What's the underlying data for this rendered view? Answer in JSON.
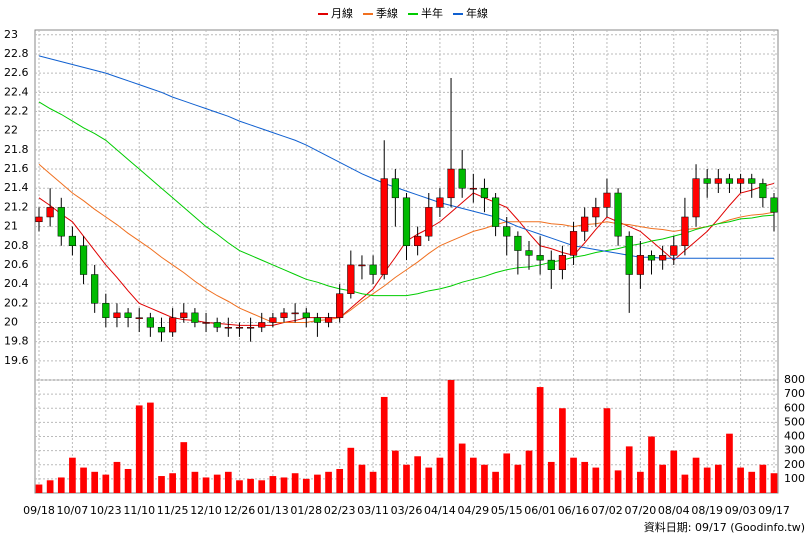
{
  "chart_data": {
    "type": "candlestick",
    "categories": [
      "09/18",
      null,
      null,
      "10/07",
      null,
      null,
      "10/23",
      null,
      null,
      "11/10",
      null,
      null,
      "11/25",
      null,
      null,
      "12/10",
      null,
      null,
      "12/26",
      null,
      null,
      "01/13",
      null,
      null,
      "01/28",
      null,
      null,
      "02/23",
      null,
      null,
      "03/11",
      null,
      null,
      "03/26",
      null,
      null,
      "04/14",
      null,
      null,
      "04/29",
      null,
      null,
      "05/15",
      null,
      null,
      "06/01",
      null,
      null,
      "06/16",
      null,
      null,
      "07/02",
      null,
      null,
      "07/20",
      null,
      null,
      "08/04",
      null,
      null,
      "08/19",
      null,
      null,
      "09/03",
      null,
      null,
      "09/17"
    ],
    "open": [
      21.05,
      21.1,
      21.2,
      20.9,
      20.8,
      20.5,
      20.2,
      20.05,
      20.1,
      20.05,
      20.05,
      19.95,
      19.9,
      20.05,
      20.1,
      20.0,
      20.0,
      19.95,
      19.95,
      19.95,
      19.95,
      20.0,
      20.05,
      20.1,
      20.1,
      20.05,
      20.0,
      20.05,
      20.3,
      20.6,
      20.6,
      20.5,
      21.5,
      21.3,
      20.8,
      20.9,
      21.2,
      21.3,
      21.6,
      21.4,
      21.4,
      21.3,
      21.0,
      20.9,
      20.75,
      20.7,
      20.65,
      20.55,
      20.7,
      20.95,
      21.1,
      21.2,
      21.35,
      20.9,
      20.5,
      20.7,
      20.65,
      20.7,
      20.8,
      21.1,
      21.5,
      21.45,
      21.5,
      21.45,
      21.5,
      21.45,
      21.3
    ],
    "high": [
      21.2,
      21.4,
      21.3,
      21.0,
      20.9,
      20.6,
      20.3,
      20.2,
      20.15,
      20.15,
      20.1,
      20.05,
      20.15,
      20.2,
      20.15,
      20.1,
      20.05,
      20.05,
      20.0,
      20.05,
      20.1,
      20.1,
      20.15,
      20.2,
      20.15,
      20.1,
      20.1,
      20.4,
      20.75,
      20.7,
      20.7,
      21.9,
      21.6,
      21.35,
      21.0,
      21.35,
      21.4,
      22.55,
      21.8,
      21.55,
      21.5,
      21.35,
      21.1,
      20.95,
      20.85,
      20.9,
      20.75,
      20.8,
      21.05,
      21.2,
      21.3,
      21.5,
      21.4,
      20.95,
      20.85,
      20.75,
      20.8,
      20.9,
      21.3,
      21.65,
      21.6,
      21.6,
      21.55,
      21.55,
      21.55,
      21.5,
      21.35
    ],
    "low": [
      20.95,
      21.0,
      20.8,
      20.7,
      20.4,
      20.1,
      19.95,
      19.95,
      19.95,
      19.9,
      19.85,
      19.8,
      19.85,
      20.0,
      19.95,
      19.9,
      19.9,
      19.85,
      19.85,
      19.8,
      19.9,
      19.95,
      20.0,
      20.0,
      19.95,
      19.85,
      19.95,
      20.0,
      20.25,
      20.45,
      20.4,
      20.45,
      21.0,
      20.65,
      20.7,
      20.85,
      21.1,
      21.2,
      21.3,
      21.25,
      21.15,
      20.9,
      20.7,
      20.5,
      20.55,
      20.5,
      20.35,
      20.45,
      20.6,
      20.85,
      21.0,
      21.1,
      20.8,
      20.1,
      20.35,
      20.5,
      20.55,
      20.6,
      20.7,
      21.0,
      21.3,
      21.35,
      21.35,
      21.35,
      21.3,
      21.2,
      20.95
    ],
    "close": [
      21.1,
      21.2,
      20.9,
      20.8,
      20.5,
      20.2,
      20.05,
      20.1,
      20.05,
      20.05,
      19.95,
      19.9,
      20.05,
      20.1,
      20.0,
      20.0,
      19.95,
      19.95,
      19.95,
      19.95,
      20.0,
      20.05,
      20.1,
      20.1,
      20.05,
      20.0,
      20.05,
      20.3,
      20.6,
      20.6,
      20.5,
      21.5,
      21.3,
      20.8,
      20.9,
      21.2,
      21.3,
      21.6,
      21.4,
      21.4,
      21.3,
      21.0,
      20.9,
      20.75,
      20.7,
      20.65,
      20.55,
      20.7,
      20.95,
      21.1,
      21.2,
      21.35,
      20.9,
      20.5,
      20.7,
      20.65,
      20.7,
      20.8,
      21.1,
      21.5,
      21.45,
      21.5,
      21.45,
      21.5,
      21.45,
      21.3,
      21.15
    ],
    "up_color": "#ff0000",
    "down_color": "#00bb00",
    "lines": [
      {
        "name": "月線",
        "color": "#e00000",
        "values": [
          21.3,
          21.22,
          21.13,
          21.05,
          20.9,
          20.75,
          20.6,
          20.47,
          20.33,
          20.2,
          20.15,
          20.1,
          20.05,
          20.03,
          20.02,
          20.0,
          19.99,
          19.98,
          19.97,
          19.97,
          19.97,
          19.97,
          20.0,
          20.02,
          20.05,
          20.05,
          20.05,
          20.05,
          20.15,
          20.25,
          20.35,
          20.52,
          20.68,
          20.85,
          20.92,
          20.98,
          21.05,
          21.15,
          21.25,
          21.35,
          21.3,
          21.25,
          21.2,
          21.07,
          20.93,
          20.8,
          20.77,
          20.73,
          20.7,
          20.83,
          20.97,
          21.1,
          21.05,
          21.0,
          20.95,
          20.85,
          20.75,
          20.65,
          20.75,
          20.85,
          20.95,
          21.08,
          21.22,
          21.35,
          21.38,
          21.42,
          21.45
        ]
      },
      {
        "name": "季線",
        "color": "#f07020",
        "values": [
          21.65,
          21.55,
          21.45,
          21.35,
          21.27,
          21.18,
          21.1,
          21.02,
          20.93,
          20.85,
          20.77,
          20.68,
          20.6,
          20.52,
          20.43,
          20.35,
          20.28,
          20.22,
          20.15,
          20.1,
          20.05,
          20.0,
          20.0,
          20.0,
          20.0,
          20.02,
          20.03,
          20.05,
          20.13,
          20.22,
          20.3,
          20.38,
          20.47,
          20.55,
          20.63,
          20.72,
          20.8,
          20.85,
          20.9,
          20.95,
          20.98,
          21.02,
          21.05,
          21.05,
          21.05,
          21.05,
          21.03,
          21.02,
          21.0,
          21.02,
          21.03,
          21.05,
          21.03,
          21.02,
          21.0,
          20.98,
          20.97,
          20.95,
          20.97,
          20.98,
          21.0,
          21.03,
          21.07,
          21.1,
          21.12,
          21.13,
          21.15
        ]
      },
      {
        "name": "半年",
        "color": "#00cc00",
        "values": [
          22.3,
          22.23,
          22.17,
          22.1,
          22.03,
          21.97,
          21.9,
          21.8,
          21.7,
          21.6,
          21.5,
          21.4,
          21.3,
          21.2,
          21.1,
          21.0,
          20.92,
          20.83,
          20.75,
          20.7,
          20.65,
          20.6,
          20.55,
          20.5,
          20.45,
          20.42,
          20.38,
          20.35,
          20.33,
          20.3,
          20.28,
          20.28,
          20.28,
          20.28,
          20.3,
          20.33,
          20.35,
          20.38,
          20.42,
          20.45,
          20.48,
          20.52,
          20.55,
          20.57,
          20.58,
          20.6,
          20.63,
          20.65,
          20.68,
          20.7,
          20.73,
          20.75,
          20.77,
          20.8,
          20.82,
          20.85,
          20.87,
          20.9,
          20.93,
          20.97,
          21.0,
          21.03,
          21.05,
          21.08,
          21.09,
          21.11,
          21.12
        ]
      },
      {
        "name": "年線",
        "color": "#1060d0",
        "values": [
          22.78,
          22.75,
          22.72,
          22.69,
          22.66,
          22.63,
          22.6,
          22.56,
          22.52,
          22.48,
          22.44,
          22.4,
          22.35,
          22.31,
          22.27,
          22.23,
          22.19,
          22.15,
          22.1,
          22.06,
          22.02,
          21.98,
          21.94,
          21.9,
          21.85,
          21.79,
          21.73,
          21.67,
          21.61,
          21.55,
          21.5,
          21.45,
          21.41,
          21.37,
          21.33,
          21.29,
          21.25,
          21.22,
          21.19,
          21.16,
          21.13,
          21.1,
          21.05,
          21.0,
          20.96,
          20.92,
          20.88,
          20.84,
          20.8,
          20.78,
          20.76,
          20.74,
          20.72,
          20.7,
          20.68,
          20.68,
          20.67,
          20.67,
          20.67,
          20.67,
          20.67,
          20.67,
          20.67,
          20.67,
          20.67,
          20.67,
          20.67
        ]
      }
    ],
    "ylim": [
      19.4,
      23.05
    ],
    "yticks": [
      19.6,
      19.8,
      20,
      20.2,
      20.4,
      20.6,
      20.8,
      21,
      21.2,
      21.4,
      21.6,
      21.8,
      22,
      22.2,
      22.4,
      22.6,
      22.8,
      23
    ],
    "volume": {
      "color": "#ff0000",
      "values": [
        60,
        90,
        110,
        250,
        180,
        150,
        130,
        220,
        170,
        620,
        640,
        120,
        140,
        360,
        150,
        110,
        130,
        150,
        90,
        100,
        90,
        120,
        110,
        140,
        100,
        130,
        150,
        170,
        320,
        200,
        150,
        680,
        300,
        200,
        260,
        180,
        250,
        800,
        350,
        250,
        200,
        150,
        280,
        200,
        300,
        750,
        220,
        600,
        250,
        220,
        180,
        600,
        160,
        330,
        150,
        400,
        200,
        300,
        130,
        250,
        180,
        200,
        420,
        180,
        150,
        200,
        140
      ],
      "ylim": [
        0,
        800
      ],
      "yticks": [
        100,
        200,
        300,
        400,
        500,
        600,
        700,
        800
      ]
    },
    "grid": true,
    "footer": "資料日期: 09/17  (Goodinfo.tw)"
  }
}
